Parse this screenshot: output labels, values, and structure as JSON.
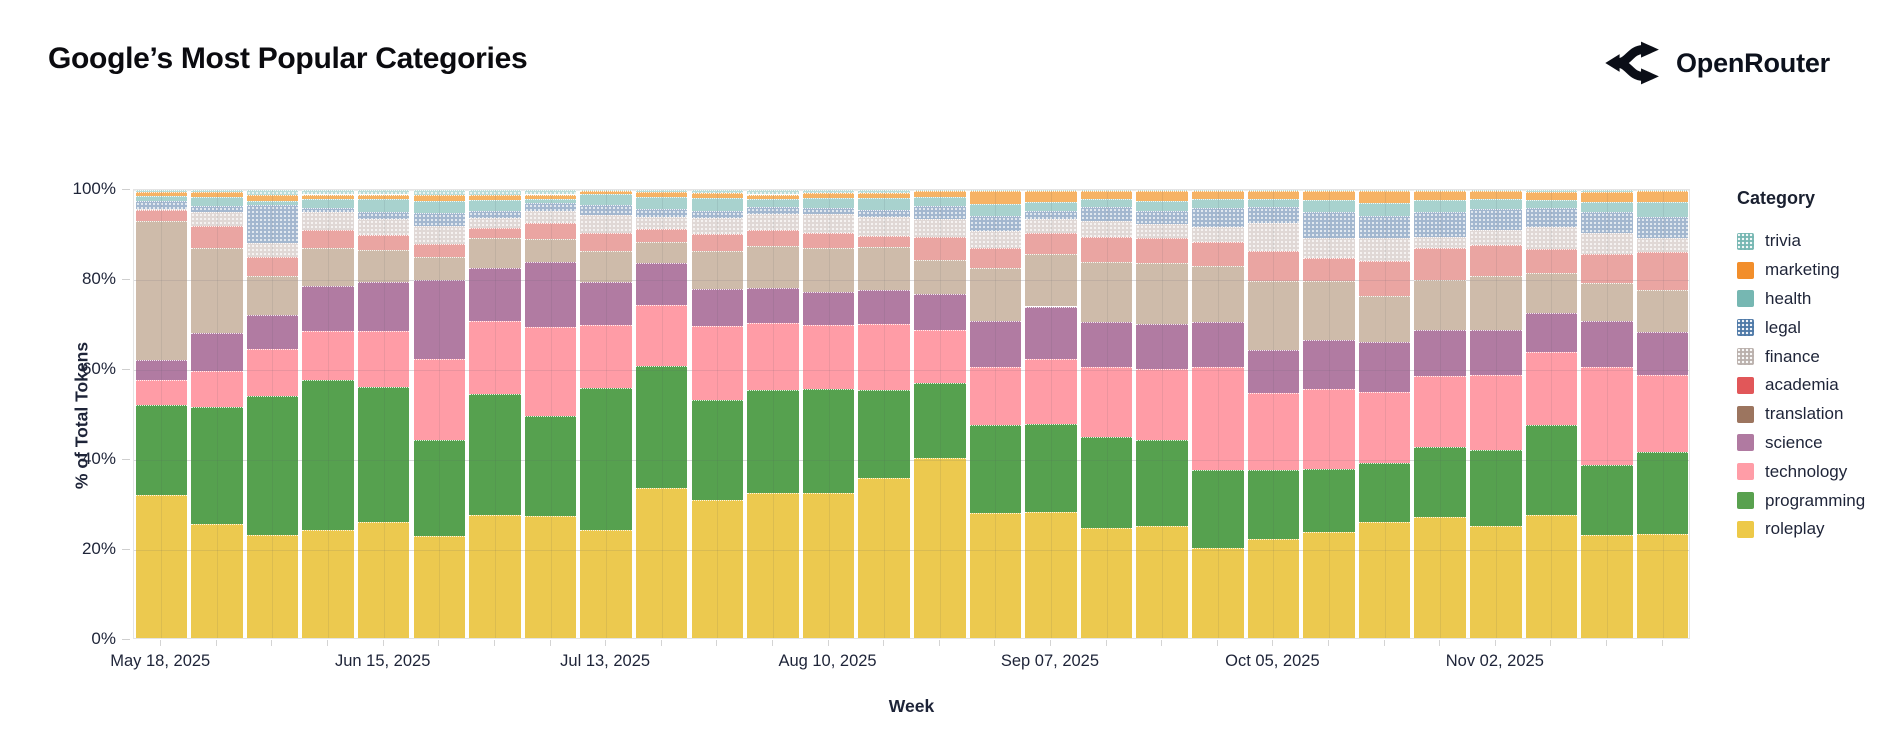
{
  "header": {
    "title": "Google’s Most Popular Categories",
    "brand": {
      "name": "OpenRouter",
      "icon": "fork-arrows-icon"
    }
  },
  "chart_data": {
    "type": "bar",
    "variant": "stacked-normalized-100",
    "title": "Google’s Most Popular Categories",
    "xlabel": "Week",
    "ylabel": "% of Total Tokens",
    "ylim": [
      0,
      100
    ],
    "grid": true,
    "y_tick_labels": [
      "0%",
      "20%",
      "40%",
      "60%",
      "80%",
      "100%"
    ],
    "x_tick_interval": 4,
    "x_tick_indices_shown": [
      0,
      4,
      8,
      12,
      16,
      20,
      24
    ],
    "x_tick_labels_shown": [
      "May 18, 2025",
      "Jun 15, 2025",
      "Jul 13, 2025",
      "Aug 10, 2025",
      "Sep 07, 2025",
      "Oct 05, 2025",
      "Nov 02, 2025"
    ],
    "legend_title": "Category",
    "legend_position": "right",
    "stack_order_bottom_to_top": [
      "roleplay",
      "programming",
      "technology",
      "science",
      "translation",
      "academia",
      "finance",
      "legal",
      "health",
      "marketing",
      "trivia"
    ],
    "weeks": [
      "May 18, 2025",
      "May 25, 2025",
      "Jun 01, 2025",
      "Jun 08, 2025",
      "Jun 15, 2025",
      "Jun 22, 2025",
      "Jun 29, 2025",
      "Jul 06, 2025",
      "Jul 13, 2025",
      "Jul 20, 2025",
      "Jul 27, 2025",
      "Aug 03, 2025",
      "Aug 10, 2025",
      "Aug 17, 2025",
      "Aug 24, 2025",
      "Aug 31, 2025",
      "Sep 07, 2025",
      "Sep 14, 2025",
      "Sep 21, 2025",
      "Sep 28, 2025",
      "Oct 05, 2025",
      "Oct 12, 2025",
      "Oct 19, 2025",
      "Oct 26, 2025",
      "Nov 02, 2025",
      "Nov 09, 2025",
      "Nov 16, 2025",
      "Nov 23, 2025"
    ],
    "series": [
      {
        "name": "trivia",
        "color": "#76b7b2",
        "fill": "#b9dcd8",
        "pattern": true,
        "values": [
          0.5,
          0.5,
          1.2,
          1.0,
          1.0,
          1.2,
          1.1,
          1.0,
          0.3,
          0.5,
          0.6,
          1.0,
          0.6,
          0.7,
          0.2,
          0.3,
          0.2,
          0.2,
          0.2,
          0.2,
          0.2,
          0.2,
          0.2,
          0.2,
          0.2,
          0.5,
          0.4,
          0.3
        ]
      },
      {
        "name": "marketing",
        "color": "#f28e2b",
        "fill": "#f6b365",
        "pattern": false,
        "values": [
          0.8,
          1.0,
          1.2,
          1.0,
          1.1,
          1.2,
          1.1,
          1.0,
          0.7,
          1.1,
          1.1,
          1.1,
          1.1,
          1.0,
          1.4,
          2.9,
          2.5,
          1.7,
          2.3,
          1.9,
          1.7,
          2.0,
          2.6,
          2.1,
          1.8,
          1.8,
          2.2,
          2.4
        ]
      },
      {
        "name": "health",
        "color": "#76b7b2",
        "fill": "#a8d2ce",
        "pattern": false,
        "values": [
          1.2,
          2.0,
          1.0,
          2.0,
          2.7,
          2.8,
          2.4,
          1.0,
          2.4,
          2.7,
          3.0,
          1.8,
          2.4,
          2.8,
          1.9,
          2.6,
          1.9,
          2.0,
          2.2,
          2.0,
          1.9,
          2.6,
          3.0,
          2.6,
          2.2,
          1.8,
          2.2,
          3.3
        ]
      },
      {
        "name": "legal",
        "color": "#4e79a7",
        "fill": "#a3b7cf",
        "pattern": true,
        "values": [
          1.7,
          1.5,
          8.5,
          1.0,
          1.7,
          2.8,
          1.7,
          1.6,
          2.2,
          1.7,
          1.5,
          1.5,
          1.3,
          1.6,
          3.0,
          3.3,
          1.9,
          3.0,
          2.8,
          4.1,
          3.5,
          5.8,
          5.0,
          5.6,
          4.7,
          4.1,
          4.7,
          4.7
        ]
      },
      {
        "name": "finance",
        "color": "#bab0ac",
        "fill": "#e0d8d5",
        "pattern": true,
        "values": [
          0.3,
          3.0,
          3.0,
          4.0,
          3.5,
          4.0,
          2.2,
          2.8,
          4.0,
          2.6,
          3.7,
          3.5,
          4.3,
          4.1,
          3.9,
          3.9,
          3.0,
          3.6,
          3.3,
          3.5,
          6.4,
          4.6,
          5.0,
          2.5,
          3.3,
          5.0,
          4.8,
          3.2
        ]
      },
      {
        "name": "academia",
        "color": "#e15759",
        "fill": "#eaa5a2",
        "pattern": false,
        "values": [
          2.5,
          5.0,
          4.4,
          4.0,
          3.5,
          3.0,
          2.2,
          3.5,
          4.0,
          3.0,
          3.7,
          3.7,
          3.3,
          2.6,
          5.3,
          4.4,
          4.8,
          5.6,
          5.6,
          5.2,
          6.5,
          5.0,
          7.8,
          7.1,
          6.9,
          5.4,
          6.5,
          8.5
        ]
      },
      {
        "name": "translation",
        "color": "#9c755f",
        "fill": "#cebbaa",
        "pattern": false,
        "values": [
          31.0,
          19.0,
          8.7,
          8.5,
          7.0,
          5.0,
          6.6,
          5.2,
          7.0,
          4.8,
          8.5,
          9.2,
          9.8,
          9.6,
          7.4,
          11.9,
          11.7,
          13.4,
          13.5,
          12.6,
          15.6,
          13.2,
          10.3,
          11.2,
          12.1,
          8.9,
          8.5,
          9.3
        ]
      },
      {
        "name": "science",
        "color": "#b07aa1",
        "fill": "#b17ba2",
        "pattern": false,
        "values": [
          4.5,
          8.5,
          7.5,
          10.0,
          11.0,
          17.7,
          12.0,
          14.4,
          9.6,
          9.3,
          8.3,
          7.8,
          7.4,
          7.6,
          8.1,
          10.2,
          11.8,
          10.1,
          10.0,
          10.1,
          9.5,
          11.1,
          11.1,
          10.3,
          10.1,
          8.6,
          10.3,
          9.6
        ]
      },
      {
        "name": "technology",
        "color": "#ff9da7",
        "fill": "#ff9ca6",
        "pattern": false,
        "values": [
          5.5,
          8.0,
          10.5,
          11.0,
          12.5,
          18.0,
          16.2,
          19.9,
          14.0,
          13.6,
          16.5,
          15.1,
          14.3,
          14.7,
          11.9,
          12.9,
          14.4,
          15.6,
          16.0,
          22.8,
          17.3,
          17.8,
          16.0,
          15.7,
          16.8,
          16.3,
          21.7,
          17.1
        ]
      },
      {
        "name": "programming",
        "color": "#59a14f",
        "fill": "#56a14f",
        "pattern": false,
        "values": [
          20.0,
          26.0,
          31.0,
          33.5,
          30.0,
          21.6,
          27.0,
          22.3,
          31.6,
          27.2,
          22.2,
          22.9,
          23.1,
          19.6,
          16.7,
          19.7,
          19.7,
          20.2,
          19.0,
          17.5,
          15.3,
          14.1,
          13.1,
          15.7,
          16.9,
          20.2,
          15.6,
          18.3
        ]
      },
      {
        "name": "roleplay",
        "color": "#edc948",
        "fill": "#ecc94f",
        "pattern": false,
        "values": [
          32.0,
          25.5,
          23.0,
          24.0,
          26.0,
          22.7,
          27.5,
          27.3,
          24.2,
          33.5,
          30.9,
          32.4,
          32.4,
          35.7,
          40.2,
          27.9,
          28.1,
          24.6,
          25.1,
          20.1,
          22.1,
          23.6,
          25.9,
          27.0,
          25.0,
          27.4,
          23.1,
          23.3
        ]
      }
    ]
  }
}
